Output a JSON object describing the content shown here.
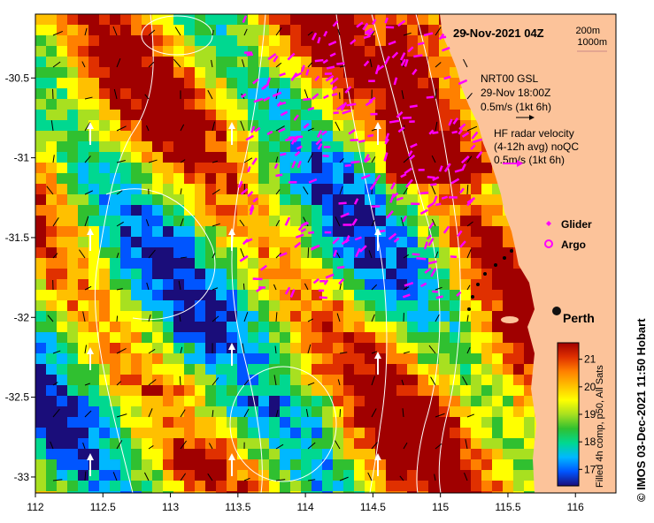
{
  "map": {
    "date_title": "29-Nov-2021 04Z",
    "contour_labels": [
      "200m",
      "1000m"
    ],
    "current_key": {
      "model": "NRT00 GSL",
      "model_time": "29-Nov 18:00Z",
      "model_scale": "0.5m/s (1kt 6h)",
      "radar_line1": "HF radar velocity",
      "radar_line2": "(4-12h avg) noQC",
      "radar_scale": "0.5m/s (1kt 6h)"
    },
    "legend": {
      "glider": "Glider",
      "argo": "Argo"
    },
    "place": {
      "name": "Perth",
      "lon": 115.86,
      "lat": -31.95
    },
    "colorbar": {
      "title": "Filled 4h comp, p50, All Sats",
      "ticks": [
        "17",
        "18",
        "19",
        "20",
        "21"
      ],
      "colors": [
        "#1a0d7a",
        "#0055ff",
        "#00b8ff",
        "#00d890",
        "#30c030",
        "#a8e020",
        "#ffff00",
        "#ffc000",
        "#ff8000",
        "#e03000",
        "#a00000"
      ]
    },
    "x_ticks": [
      "112",
      "112.5",
      "113",
      "113.5",
      "114",
      "114.5",
      "115",
      "115.5",
      "116"
    ],
    "y_ticks": [
      "-30.5",
      "-31",
      "-31.5",
      "-32",
      "-32.5",
      "-33"
    ],
    "x_range": [
      112,
      116.3
    ],
    "y_range": [
      -33.1,
      -30.1
    ],
    "credit": "© IMOS 03-Dec-2021 11:50 Hobart",
    "colors": {
      "land": "#fcc39a",
      "glider": "#ff00ff",
      "radar_vectors": "#ff00ff",
      "model_vectors": "#000000",
      "glider_vectors": "#ffffff"
    }
  }
}
